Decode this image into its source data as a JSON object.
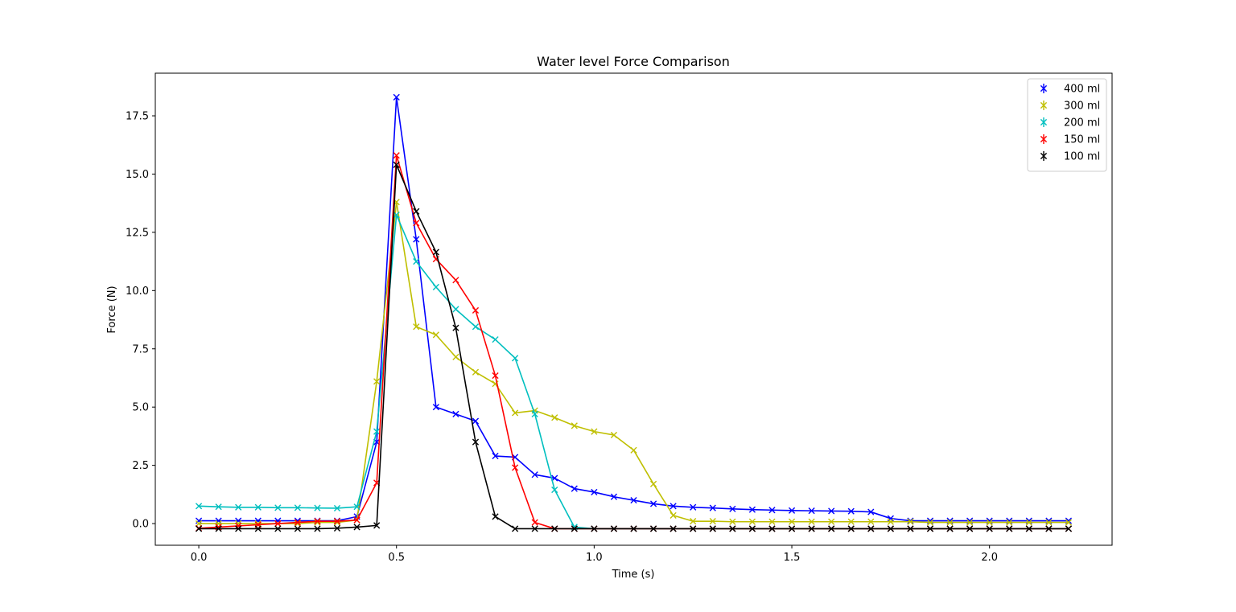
{
  "chart_data": {
    "type": "line",
    "title": "Water level Force Comparison",
    "xlabel": "Time (s)",
    "ylabel": "Force (N)",
    "xlim": [
      -0.11,
      2.31
    ],
    "ylim": [
      -0.93,
      19.33
    ],
    "xticks": [
      0.0,
      0.5,
      1.0,
      1.5,
      2.0
    ],
    "xtick_labels": [
      "0.0",
      "0.5",
      "1.0",
      "1.5",
      "2.0"
    ],
    "yticks": [
      0.0,
      2.5,
      5.0,
      7.5,
      10.0,
      12.5,
      15.0,
      17.5
    ],
    "ytick_labels": [
      "0.0",
      "2.5",
      "5.0",
      "7.5",
      "10.0",
      "12.5",
      "15.0",
      "17.5"
    ],
    "grid": false,
    "legend_position": "top-right",
    "marker": "x",
    "x": [
      0.0,
      0.05,
      0.1,
      0.15,
      0.2,
      0.25,
      0.3,
      0.35,
      0.4,
      0.45,
      0.5,
      0.55,
      0.6,
      0.65,
      0.7,
      0.75,
      0.8,
      0.85,
      0.9,
      0.95,
      1.0,
      1.05,
      1.1,
      1.15,
      1.2,
      1.25,
      1.3,
      1.35,
      1.4,
      1.45,
      1.5,
      1.55,
      1.6,
      1.65,
      1.7,
      1.75,
      1.8,
      1.85,
      1.9,
      1.95,
      2.0,
      2.05,
      2.1,
      2.15,
      2.2
    ],
    "series": [
      {
        "name": "400 ml",
        "color": "#0000ff",
        "values": [
          0.12,
          0.12,
          0.12,
          0.12,
          0.12,
          0.12,
          0.12,
          0.12,
          0.3,
          3.5,
          18.3,
          12.2,
          5.0,
          4.7,
          4.4,
          2.9,
          2.85,
          2.1,
          1.95,
          1.5,
          1.35,
          1.15,
          1.0,
          0.85,
          0.75,
          0.7,
          0.67,
          0.63,
          0.6,
          0.58,
          0.56,
          0.55,
          0.54,
          0.53,
          0.5,
          0.22,
          0.12,
          0.12,
          0.12,
          0.12,
          0.12,
          0.12,
          0.12,
          0.12,
          0.12
        ]
      },
      {
        "name": "300 ml",
        "color": "#bfbf00",
        "values": [
          0.0,
          0.0,
          0.0,
          0.0,
          0.0,
          0.0,
          0.05,
          0.05,
          0.15,
          6.1,
          13.8,
          8.45,
          8.1,
          7.15,
          6.5,
          6.0,
          4.75,
          4.85,
          4.55,
          4.2,
          3.95,
          3.8,
          3.15,
          1.7,
          0.35,
          0.1,
          0.1,
          0.08,
          0.08,
          0.08,
          0.08,
          0.08,
          0.08,
          0.08,
          0.08,
          0.08,
          0.08,
          0.05,
          0.05,
          0.05,
          0.05,
          0.05,
          0.05,
          0.05,
          0.05
        ]
      },
      {
        "name": "200 ml",
        "color": "#00bfbf",
        "values": [
          0.75,
          0.72,
          0.7,
          0.7,
          0.68,
          0.68,
          0.67,
          0.66,
          0.72,
          3.95,
          13.25,
          11.25,
          10.15,
          9.2,
          8.45,
          7.9,
          7.1,
          4.7,
          1.45,
          -0.15,
          -0.22,
          -0.22,
          -0.22,
          -0.22,
          -0.22,
          -0.22,
          -0.22,
          -0.22,
          -0.22,
          -0.22,
          -0.22,
          -0.22,
          -0.22,
          -0.22,
          -0.22,
          -0.22,
          -0.22,
          -0.22,
          -0.22,
          -0.22,
          -0.22,
          -0.22,
          -0.22,
          -0.22,
          -0.22
        ]
      },
      {
        "name": "150 ml",
        "color": "#ff0000",
        "values": [
          -0.2,
          -0.15,
          -0.1,
          -0.05,
          0.0,
          0.05,
          0.1,
          0.1,
          0.15,
          1.75,
          15.8,
          12.9,
          11.35,
          10.45,
          9.15,
          6.35,
          2.4,
          0.05,
          -0.22,
          -0.22,
          -0.22,
          -0.22,
          -0.22,
          -0.22,
          -0.22,
          -0.22,
          -0.22,
          -0.22,
          -0.22,
          -0.22,
          -0.22,
          -0.22,
          -0.22,
          -0.22,
          -0.22,
          -0.22,
          -0.22,
          -0.22,
          -0.22,
          -0.22,
          -0.22,
          -0.22,
          -0.22,
          -0.22,
          -0.22
        ]
      },
      {
        "name": "100 ml",
        "color": "#000000",
        "values": [
          -0.22,
          -0.22,
          -0.22,
          -0.22,
          -0.22,
          -0.22,
          -0.22,
          -0.2,
          -0.15,
          -0.08,
          15.4,
          13.4,
          11.65,
          8.4,
          3.5,
          0.3,
          -0.22,
          -0.22,
          -0.22,
          -0.22,
          -0.22,
          -0.22,
          -0.22,
          -0.22,
          -0.22,
          -0.22,
          -0.22,
          -0.22,
          -0.22,
          -0.22,
          -0.22,
          -0.22,
          -0.22,
          -0.22,
          -0.22,
          -0.22,
          -0.22,
          -0.22,
          -0.22,
          -0.22,
          -0.22,
          -0.22,
          -0.22,
          -0.22,
          -0.22
        ]
      }
    ]
  }
}
